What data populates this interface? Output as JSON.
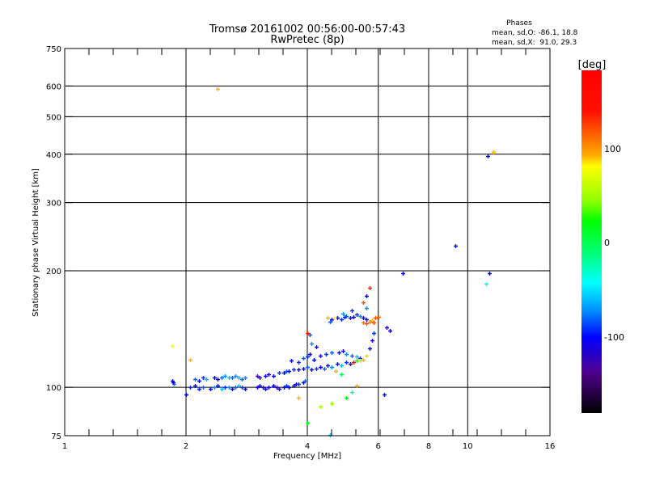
{
  "chart_data": {
    "type": "scatter",
    "title": "Tromsø 20161002 00:56:00-00:57:43",
    "subtitle": "RwPretec (8p)",
    "xlabel": "Frequency [MHz]",
    "ylabel": "Stationary phase Virtual Height [km]",
    "xscale": "log",
    "yscale": "log",
    "xlim": [
      1,
      16
    ],
    "ylim": [
      75,
      750
    ],
    "xticks": [
      1,
      2,
      4,
      6,
      8,
      10,
      16
    ],
    "xtick_labels": [
      "1",
      "2",
      "4",
      "6",
      "8",
      "10",
      "16"
    ],
    "yticks": [
      75,
      100,
      200,
      300,
      400,
      500,
      600,
      750
    ],
    "ytick_labels": [
      "75",
      "100",
      "200",
      "300",
      "400",
      "500",
      "600",
      "750"
    ],
    "grid": true,
    "stats": {
      "header": "Phases",
      "line_o": "mean, sd,O: -86.1, 18.8",
      "line_x": "mean, sd,X:  91.0, 29.3"
    },
    "colorbar": {
      "label": "[deg]",
      "range": [
        -180,
        180
      ],
      "ticks": [
        100,
        0,
        -100
      ],
      "tick_labels": [
        "100",
        "0",
        "-100"
      ]
    },
    "points_columns": [
      "frequency_mhz",
      "height_km",
      "phase_deg"
    ],
    "points": [
      [
        2.05,
        100,
        -90
      ],
      [
        2.1,
        101,
        -100
      ],
      [
        2.15,
        99,
        -95
      ],
      [
        2.2,
        100,
        -80
      ],
      [
        2.3,
        99,
        -100
      ],
      [
        2.35,
        100,
        -70
      ],
      [
        2.4,
        101,
        -100
      ],
      [
        2.45,
        99,
        -60
      ],
      [
        2.5,
        100,
        -90
      ],
      [
        2.55,
        100,
        -70
      ],
      [
        2.6,
        99,
        -100
      ],
      [
        2.65,
        100,
        -80
      ],
      [
        2.7,
        101,
        -60
      ],
      [
        2.75,
        100,
        -90
      ],
      [
        2.8,
        99,
        -100
      ],
      [
        3.0,
        100,
        -110
      ],
      [
        3.05,
        101,
        -100
      ],
      [
        3.1,
        100,
        -130
      ],
      [
        3.15,
        99,
        -100
      ],
      [
        3.2,
        100,
        -110
      ],
      [
        3.3,
        101,
        -100
      ],
      [
        3.35,
        100,
        -130
      ],
      [
        3.4,
        99,
        -100
      ],
      [
        3.5,
        100,
        -110
      ],
      [
        3.55,
        101,
        -90
      ],
      [
        3.6,
        100,
        -100
      ],
      [
        3.7,
        101,
        -110
      ],
      [
        3.75,
        102,
        -100
      ],
      [
        3.8,
        102,
        -90
      ],
      [
        3.9,
        103,
        -100
      ],
      [
        3.95,
        104,
        -80
      ],
      [
        2.1,
        105,
        -80
      ],
      [
        2.15,
        104,
        -100
      ],
      [
        2.2,
        106,
        -90
      ],
      [
        2.25,
        105,
        -60
      ],
      [
        2.35,
        106,
        -100
      ],
      [
        2.4,
        105,
        -110
      ],
      [
        2.45,
        106,
        -80
      ],
      [
        2.5,
        107,
        -70
      ],
      [
        2.55,
        106,
        -60
      ],
      [
        2.6,
        106,
        -80
      ],
      [
        2.65,
        107,
        -70
      ],
      [
        2.7,
        106,
        -60
      ],
      [
        2.75,
        105,
        -80
      ],
      [
        2.8,
        106,
        -70
      ],
      [
        1.85,
        104,
        -100
      ],
      [
        1.87,
        102,
        -70
      ],
      [
        1.86,
        103,
        -100
      ],
      [
        3.0,
        107,
        -130
      ],
      [
        3.05,
        106,
        -120
      ],
      [
        3.15,
        107,
        -100
      ],
      [
        3.2,
        108,
        -110
      ],
      [
        3.3,
        107,
        -100
      ],
      [
        3.4,
        109,
        -90
      ],
      [
        3.5,
        109,
        -100
      ],
      [
        3.55,
        110,
        -80
      ],
      [
        3.6,
        110,
        -100
      ],
      [
        3.7,
        111,
        -90
      ],
      [
        3.8,
        111,
        -110
      ],
      [
        3.9,
        112,
        -100
      ],
      [
        4.0,
        113,
        -80
      ],
      [
        3.65,
        117,
        -100
      ],
      [
        3.8,
        116,
        -90
      ],
      [
        3.9,
        119,
        -80
      ],
      [
        4.0,
        120,
        -90
      ],
      [
        4.05,
        122,
        -100
      ],
      [
        4.15,
        118,
        -100
      ],
      [
        4.3,
        121,
        -110
      ],
      [
        4.45,
        122,
        -90
      ],
      [
        4.6,
        123,
        -80
      ],
      [
        4.8,
        123,
        -100
      ],
      [
        4.9,
        124,
        -110
      ],
      [
        5.0,
        122,
        -70
      ],
      [
        5.15,
        121,
        -80
      ],
      [
        5.3,
        120,
        -60
      ],
      [
        5.4,
        119,
        -90
      ],
      [
        5.6,
        121,
        95
      ],
      [
        5.7,
        126,
        -100
      ],
      [
        5.8,
        132,
        -110
      ],
      [
        5.85,
        138,
        -90
      ],
      [
        4.2,
        127,
        -100
      ],
      [
        4.1,
        130,
        -70
      ],
      [
        4.05,
        137,
        -80
      ],
      [
        4.1,
        111,
        -100
      ],
      [
        4.2,
        112,
        -90
      ],
      [
        4.3,
        113,
        -100
      ],
      [
        4.4,
        112,
        -80
      ],
      [
        4.5,
        114,
        -100
      ],
      [
        4.6,
        113,
        -70
      ],
      [
        4.75,
        115,
        -100
      ],
      [
        4.85,
        114,
        -60
      ],
      [
        5.0,
        116,
        -90
      ],
      [
        5.1,
        115,
        -120
      ],
      [
        5.2,
        116,
        160
      ],
      [
        5.3,
        117,
        30
      ],
      [
        5.4,
        117,
        60
      ],
      [
        5.5,
        118,
        100
      ],
      [
        4.55,
        148,
        -80
      ],
      [
        4.6,
        150,
        -110
      ],
      [
        4.75,
        151,
        -100
      ],
      [
        4.85,
        150,
        -90
      ],
      [
        4.95,
        152,
        -100
      ],
      [
        5.0,
        153,
        -80
      ],
      [
        5.1,
        151,
        -110
      ],
      [
        5.2,
        152,
        -100
      ],
      [
        5.3,
        154,
        -90
      ],
      [
        5.4,
        153,
        -70
      ],
      [
        5.5,
        151,
        -100
      ],
      [
        5.6,
        150,
        -110
      ],
      [
        5.5,
        147,
        110
      ],
      [
        5.6,
        146,
        120
      ],
      [
        5.7,
        148,
        110
      ],
      [
        5.8,
        149,
        100
      ],
      [
        5.9,
        151,
        120
      ],
      [
        6.0,
        152,
        110
      ],
      [
        5.85,
        147,
        120
      ],
      [
        4.5,
        151,
        100
      ],
      [
        4.65,
        151,
        90
      ],
      [
        4.9,
        155,
        -70
      ],
      [
        5.15,
        158,
        -90
      ],
      [
        5.6,
        160,
        -70
      ],
      [
        5.5,
        166,
        120
      ],
      [
        5.7,
        181,
        130
      ],
      [
        5.6,
        172,
        -100
      ],
      [
        2.4,
        590,
        100
      ],
      [
        11.6,
        405,
        100
      ],
      [
        11.2,
        395,
        -100
      ],
      [
        9.3,
        232,
        -100
      ],
      [
        6.9,
        197,
        -100
      ],
      [
        11.3,
        197,
        -100
      ],
      [
        11.1,
        185,
        -40
      ],
      [
        1.85,
        128,
        90
      ],
      [
        2.05,
        118,
        100
      ],
      [
        4.0,
        138,
        150
      ],
      [
        6.3,
        143,
        -120
      ],
      [
        6.4,
        140,
        -100
      ],
      [
        4.0,
        81,
        20
      ],
      [
        4.6,
        91,
        50
      ],
      [
        5.0,
        94,
        20
      ],
      [
        3.8,
        94,
        100
      ],
      [
        4.3,
        89,
        60
      ],
      [
        2.0,
        96,
        -100
      ],
      [
        6.2,
        96,
        -100
      ],
      [
        5.15,
        97,
        -30
      ],
      [
        4.55,
        75.5,
        -60
      ],
      [
        4.7,
        110,
        100
      ],
      [
        4.85,
        108,
        0
      ],
      [
        5.3,
        101,
        100
      ]
    ]
  }
}
